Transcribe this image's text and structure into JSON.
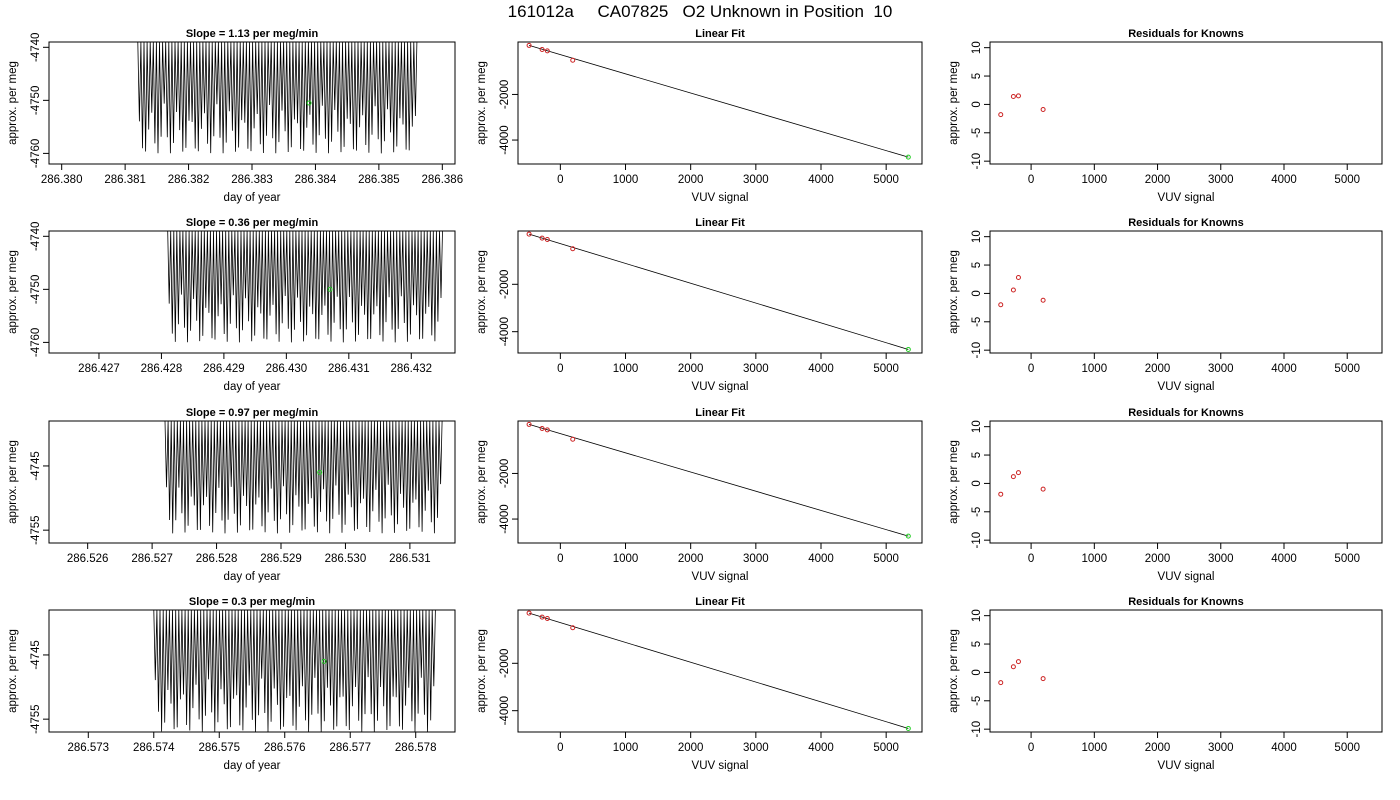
{
  "title": "161012a     CA07825   O2 Unknown in Position  10",
  "colors": {
    "trace": "#000000",
    "known_points": "#cc2222",
    "unknown_point": "#22cc22",
    "frame": "#000000"
  },
  "chart_data": [
    {
      "type": "line",
      "panel": "time-series",
      "title": "Slope =  1.13  per meg/min",
      "xlabel": "day of year",
      "ylabel": "approx. per meg",
      "xlim": [
        286.3798,
        286.3862
      ],
      "ylim": [
        -4762,
        -4739
      ],
      "xticks": [
        "286.380",
        "286.381",
        "286.382",
        "286.383",
        "286.384",
        "286.385",
        "286.386"
      ],
      "yticks": [
        "-4740",
        "-4750",
        "-4760"
      ],
      "trace": {
        "x_start": 286.3812,
        "x_end": 286.3856,
        "lower": -4760,
        "upper": -4739,
        "cycles": 90
      },
      "highlight": {
        "x": 286.3839,
        "y": -4750.5
      }
    },
    {
      "type": "scatter",
      "panel": "linear-fit",
      "title": "Linear Fit",
      "xlabel": "VUV signal",
      "ylabel": "approx. per meg",
      "xlim": [
        -650,
        5550
      ],
      "ylim": [
        -5050,
        300
      ],
      "xticks": [
        "0",
        "1000",
        "2000",
        "3000",
        "4000",
        "5000"
      ],
      "yticks": [
        "-2000",
        "-4000"
      ],
      "knowns": [
        [
          -480,
          150
        ],
        [
          -280,
          -30
        ],
        [
          -200,
          -90
        ],
        [
          190,
          -500
        ]
      ],
      "unknown": [
        5340,
        -4750
      ],
      "line": [
        [
          -480,
          150
        ],
        [
          5340,
          -4750
        ]
      ]
    },
    {
      "type": "scatter",
      "panel": "residuals",
      "title": "Residuals for Knowns",
      "xlabel": "VUV signal",
      "ylabel": "approx. per meg",
      "xlim": [
        -650,
        5550
      ],
      "ylim": [
        -10.5,
        11
      ],
      "xticks": [
        "0",
        "1000",
        "2000",
        "3000",
        "4000",
        "5000"
      ],
      "yticks": [
        "-10",
        "-5",
        "0",
        "5",
        "10"
      ],
      "points": [
        [
          -480,
          -1.8
        ],
        [
          -280,
          1.4
        ],
        [
          -200,
          1.5
        ],
        [
          190,
          -0.9
        ]
      ]
    },
    {
      "type": "line",
      "panel": "time-series",
      "title": "Slope =  0.36  per meg/min",
      "xlabel": "day of year",
      "ylabel": "approx. per meg",
      "xlim": [
        286.4262,
        286.4327
      ],
      "ylim": [
        -4762,
        -4739
      ],
      "xticks": [
        "286.427",
        "286.428",
        "286.429",
        "286.430",
        "286.431",
        "286.432"
      ],
      "yticks": [
        "-4740",
        "-4750",
        "-4760"
      ],
      "trace": {
        "x_start": 286.4281,
        "x_end": 286.4325,
        "lower": -4760,
        "upper": -4739,
        "cycles": 90
      },
      "highlight": {
        "x": 286.4307,
        "y": -4750
      }
    },
    {
      "type": "scatter",
      "panel": "linear-fit",
      "title": "Linear Fit",
      "xlabel": "VUV signal",
      "ylabel": "approx. per meg",
      "xlim": [
        -650,
        5550
      ],
      "ylim": [
        -4900,
        250
      ],
      "xticks": [
        "0",
        "1000",
        "2000",
        "3000",
        "4000",
        "5000"
      ],
      "yticks": [
        "-2000",
        "-4000"
      ],
      "knowns": [
        [
          -480,
          120
        ],
        [
          -280,
          -50
        ],
        [
          -200,
          -110
        ],
        [
          190,
          -500
        ]
      ],
      "unknown": [
        5340,
        -4750
      ],
      "line": [
        [
          -480,
          120
        ],
        [
          5340,
          -4750
        ]
      ]
    },
    {
      "type": "scatter",
      "panel": "residuals",
      "title": "Residuals for Knowns",
      "xlabel": "VUV signal",
      "ylabel": "approx. per meg",
      "xlim": [
        -650,
        5550
      ],
      "ylim": [
        -10.5,
        11
      ],
      "xticks": [
        "0",
        "1000",
        "2000",
        "3000",
        "4000",
        "5000"
      ],
      "yticks": [
        "-10",
        "-5",
        "0",
        "5",
        "10"
      ],
      "points": [
        [
          -480,
          -2.0
        ],
        [
          -280,
          0.6
        ],
        [
          -200,
          2.8
        ],
        [
          190,
          -1.2
        ]
      ]
    },
    {
      "type": "line",
      "panel": "time-series",
      "title": "Slope =  0.97  per meg/min",
      "xlabel": "day of year",
      "ylabel": "approx. per meg",
      "xlim": [
        286.5254,
        286.5317
      ],
      "ylim": [
        -4757,
        -4738
      ],
      "xticks": [
        "286.526",
        "286.527",
        "286.528",
        "286.529",
        "286.530",
        "286.531"
      ],
      "yticks": [
        "-4745",
        "-4755"
      ],
      "trace": {
        "x_start": 286.5272,
        "x_end": 286.5315,
        "lower": -4755.5,
        "upper": -4738,
        "cycles": 90
      },
      "highlight": {
        "x": 286.5296,
        "y": -4746
      }
    },
    {
      "type": "scatter",
      "panel": "linear-fit",
      "title": "Linear Fit",
      "xlabel": "VUV signal",
      "ylabel": "approx. per meg",
      "xlim": [
        -650,
        5550
      ],
      "ylim": [
        -5050,
        300
      ],
      "xticks": [
        "0",
        "1000",
        "2000",
        "3000",
        "4000",
        "5000"
      ],
      "yticks": [
        "-2000",
        "-4000"
      ],
      "knowns": [
        [
          -480,
          150
        ],
        [
          -280,
          -30
        ],
        [
          -200,
          -90
        ],
        [
          190,
          -500
        ]
      ],
      "unknown": [
        5340,
        -4750
      ],
      "line": [
        [
          -480,
          150
        ],
        [
          5340,
          -4750
        ]
      ]
    },
    {
      "type": "scatter",
      "panel": "residuals",
      "title": "Residuals for Knowns",
      "xlabel": "VUV signal",
      "ylabel": "approx. per meg",
      "xlim": [
        -650,
        5550
      ],
      "ylim": [
        -10.5,
        11
      ],
      "xticks": [
        "0",
        "1000",
        "2000",
        "3000",
        "4000",
        "5000"
      ],
      "yticks": [
        "-10",
        "-5",
        "0",
        "5",
        "10"
      ],
      "points": [
        [
          -480,
          -1.9
        ],
        [
          -280,
          1.2
        ],
        [
          -200,
          1.9
        ],
        [
          190,
          -1.0
        ]
      ]
    },
    {
      "type": "line",
      "panel": "time-series",
      "title": "Slope =  0.3  per meg/min",
      "xlabel": "day of year",
      "ylabel": "approx. per meg",
      "xlim": [
        286.5724,
        286.5786
      ],
      "ylim": [
        -4757,
        -4738
      ],
      "xticks": [
        "286.573",
        "286.574",
        "286.575",
        "286.576",
        "286.577",
        "286.578"
      ],
      "yticks": [
        "-4745",
        "-4755"
      ],
      "trace": {
        "x_start": 286.574,
        "x_end": 286.5783,
        "lower": -4757,
        "upper": -4738,
        "cycles": 90
      },
      "highlight": {
        "x": 286.5766,
        "y": -4746
      }
    },
    {
      "type": "scatter",
      "panel": "linear-fit",
      "title": "Linear Fit",
      "xlabel": "VUV signal",
      "ylabel": "approx. per meg",
      "xlim": [
        -650,
        5550
      ],
      "ylim": [
        -4900,
        250
      ],
      "xticks": [
        "0",
        "1000",
        "2000",
        "3000",
        "4000",
        "5000"
      ],
      "yticks": [
        "-2000",
        "-4000"
      ],
      "knowns": [
        [
          -480,
          120
        ],
        [
          -280,
          -50
        ],
        [
          -200,
          -110
        ],
        [
          190,
          -500
        ]
      ],
      "unknown": [
        5340,
        -4750
      ],
      "line": [
        [
          -480,
          120
        ],
        [
          5340,
          -4750
        ]
      ]
    },
    {
      "type": "scatter",
      "panel": "residuals",
      "title": "Residuals for Knowns",
      "xlabel": "VUV signal",
      "ylabel": "approx. per meg",
      "xlim": [
        -650,
        5550
      ],
      "ylim": [
        -10.5,
        11
      ],
      "xticks": [
        "0",
        "1000",
        "2000",
        "3000",
        "4000",
        "5000"
      ],
      "yticks": [
        "-10",
        "-5",
        "0",
        "5",
        "10"
      ],
      "points": [
        [
          -480,
          -1.8
        ],
        [
          -280,
          1.0
        ],
        [
          -200,
          1.9
        ],
        [
          190,
          -1.1
        ]
      ]
    }
  ]
}
